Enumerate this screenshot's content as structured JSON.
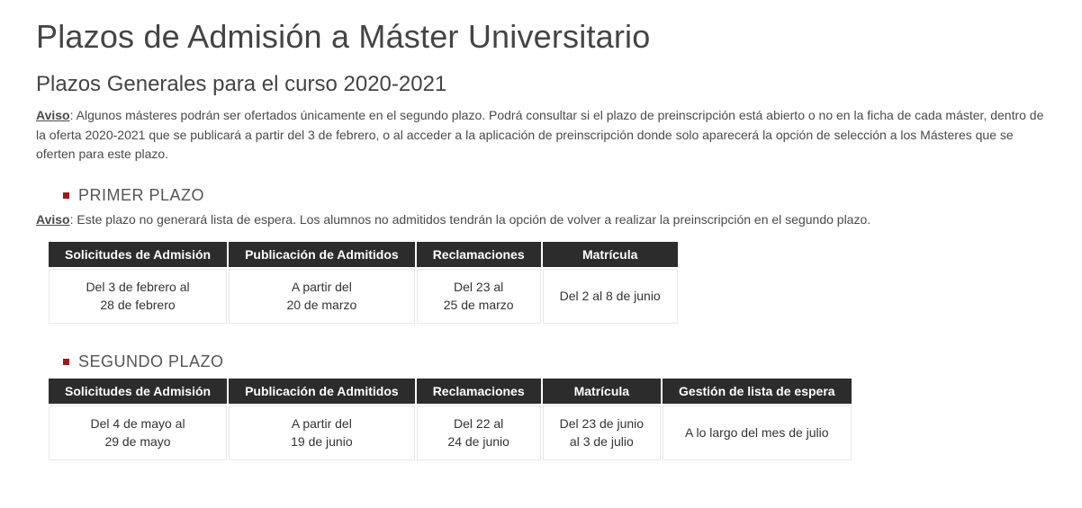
{
  "page_title": "Plazos de Admisión a Máster Universitario",
  "subtitle": "Plazos Generales para el curso 2020-2021",
  "general_notice_label": "Aviso",
  "general_notice_text": ": Algunos másteres podrán ser ofertados únicamente en el segundo plazo. Podrá consultar si el plazo de preinscripción está abierto o no en la ficha de cada máster, dentro de la oferta 2020-2021 que se publicará a partir del 3 de febrero, o al acceder a la aplicación de preinscripción donde solo aparecerá la opción de selección a los Másteres que se oferten para este plazo.",
  "primer": {
    "heading": "PRIMER PLAZO",
    "notice_label": "Aviso",
    "notice_text": ": Este plazo no generará lista de espera. Los alumnos no admitidos tendrán la opción de volver a realizar la preinscripción en el segundo plazo.",
    "table": {
      "columns": [
        "Solicitudes de Admisión",
        "Publicación de Admitidos",
        "Reclamaciones",
        "Matrícula"
      ],
      "rows": [
        [
          {
            "line1": "Del 3 de febrero al",
            "line2": "28 de febrero"
          },
          {
            "line1": "A partir del",
            "line2": "20 de marzo"
          },
          {
            "line1": "Del 23 al",
            "line2": "25 de marzo"
          },
          {
            "line1": "Del 2 al 8 de junio",
            "line2": ""
          }
        ]
      ],
      "header_bg": "#2c2c2c",
      "header_color": "#ffffff",
      "cell_border": "#e8e8e8",
      "font_size": 14
    }
  },
  "segundo": {
    "heading": "SEGUNDO PLAZO",
    "table": {
      "columns": [
        "Solicitudes de Admisión",
        "Publicación de Admitidos",
        "Reclamaciones",
        "Matrícula",
        "Gestión de lista de espera"
      ],
      "rows": [
        [
          {
            "line1": "Del 4 de mayo al",
            "line2": "29 de mayo"
          },
          {
            "line1": "A partir del",
            "line2": "19 de junio"
          },
          {
            "line1": "Del 22 al",
            "line2": "24 de junio"
          },
          {
            "line1": "Del 23 de junio",
            "line2": "al 3 de julio"
          },
          {
            "line1": "A lo largo del mes de julio",
            "line2": ""
          }
        ]
      ],
      "header_bg": "#2c2c2c",
      "header_color": "#ffffff",
      "cell_border": "#e8e8e8",
      "font_size": 14
    }
  },
  "colors": {
    "bullet": "#a01818",
    "title": "#444444",
    "body_text": "#4a4a4a",
    "background": "#ffffff"
  },
  "typography": {
    "title_fontsize": 36,
    "subtitle_fontsize": 24,
    "body_fontsize": 14,
    "heading_fontsize": 18,
    "title_weight": 300,
    "body_weight": 400
  }
}
